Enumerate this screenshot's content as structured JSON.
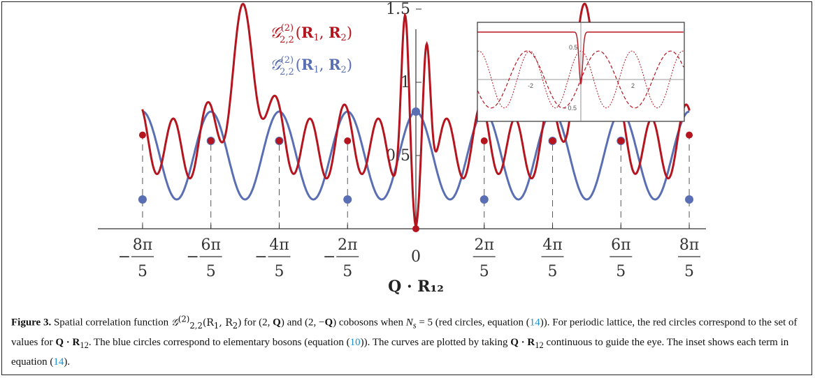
{
  "chart_data": {
    "type": "line",
    "xlabel": "Q · R₁₂",
    "ylim": [
      0,
      1.65
    ],
    "xlim": [
      -5.3,
      5.3
    ],
    "y_ticks": [
      {
        "value": 0.5,
        "label": "0.5"
      },
      {
        "value": 1.0,
        "label": "1"
      },
      {
        "value": 1.5,
        "label": "1.5"
      }
    ],
    "x_ticks": [
      {
        "value": -5.0265,
        "sign": "−",
        "num": "8π",
        "den": "5"
      },
      {
        "value": -3.7699,
        "sign": "−",
        "num": "6π",
        "den": "5"
      },
      {
        "value": -2.5133,
        "sign": "−",
        "num": "4π",
        "den": "5"
      },
      {
        "value": -1.2566,
        "sign": "−",
        "num": "2π",
        "den": "5"
      },
      {
        "value": 0,
        "sign": "",
        "num": "0",
        "den": ""
      },
      {
        "value": 1.2566,
        "sign": "",
        "num": "2π",
        "den": "5"
      },
      {
        "value": 2.5133,
        "sign": "",
        "num": "4π",
        "den": "5"
      },
      {
        "value": 3.7699,
        "sign": "",
        "num": "6π",
        "den": "5"
      },
      {
        "value": 5.0265,
        "sign": "",
        "num": "8π",
        "den": "5"
      }
    ],
    "series": [
      {
        "name": "𝒢(2)2,2(R1, R2)",
        "color": "#b5151f",
        "sample_x": [
          -5.0265,
          -3.7699,
          -2.5133,
          -1.2566,
          0,
          1.2566,
          2.5133,
          3.7699,
          5.0265
        ],
        "sample_y": [
          0.64,
          0.6,
          0.6,
          0.6,
          0.0,
          0.6,
          0.6,
          0.6,
          0.64
        ]
      },
      {
        "name": "𝒢̄(2)2,2(R1, R2)",
        "color": "#5a6fb3",
        "sample_x": [
          -5.0265,
          -3.7699,
          -2.5133,
          -1.2566,
          0,
          1.2566,
          2.5133,
          3.7699,
          5.0265
        ],
        "sample_y": [
          0.2,
          0.6,
          0.6,
          0.2,
          0.8,
          0.2,
          0.6,
          0.6,
          0.2
        ]
      }
    ],
    "inset": {
      "x_ticks": [
        "-2",
        "2"
      ],
      "y_ticks": [
        "0.5",
        "- 0.5"
      ]
    }
  },
  "caption": {
    "fig_label": "Figure 3.",
    "part1": " Spatial correlation function ",
    "gsym": "𝒢",
    "gsup": "(2)",
    "gsub": "2,2",
    "args": "(R",
    "r1sub": "1",
    "args2": ", R",
    "r2sub": "2",
    "part2": ") for (2, ",
    "q1": "Q",
    "part3": ") and (2, −",
    "q2": "Q",
    "part4": ") cobosons when ",
    "ns": "N",
    "nssub": "s",
    "part5": " = 5 (red circles, equation (",
    "eq14a": "14",
    "part6": ")). For periodic lattice, the red circles correspond to the set of values for ",
    "qr1": "Q · R",
    "qr1sub": "12",
    "part7": ". The blue circles correspond to elementary bosons (equation (",
    "eq10": "10",
    "part8": ")). The curves are plotted by taking ",
    "qr2": "Q · R",
    "qr2sub": "12",
    "part9": " continuous to guide the eye. The inset shows each term in equation (",
    "eq14b": "14",
    "part10": ")."
  }
}
